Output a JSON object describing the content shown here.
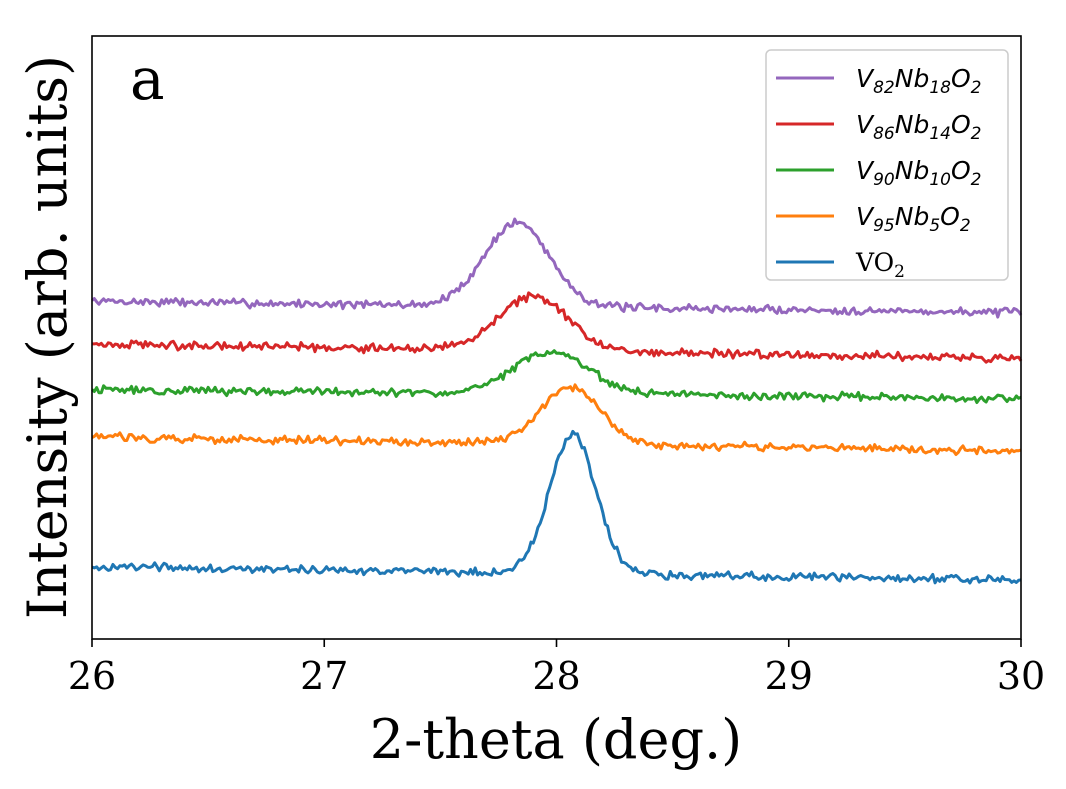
{
  "chart_data": {
    "type": "line",
    "panel_label": "a",
    "xlabel": "2-theta (deg.)",
    "ylabel": "Intensity (arb. units)",
    "xlim": [
      26,
      30
    ],
    "ylim": [
      0,
      13.3
    ],
    "xticks": [
      26,
      27,
      28,
      29,
      30
    ],
    "yticks": [],
    "grid": false,
    "legend_position": "top-right",
    "series": [
      {
        "name": "V82Nb18O2",
        "legend": {
          "base": "V",
          "s1": "82",
          "mid": "Nb",
          "s2": "18",
          "end": "O",
          "s3": "2"
        },
        "color": "#9467bd",
        "baseline_start": 7.45,
        "baseline_end": 7.2,
        "peak_center": 27.83,
        "peak_height": 1.85,
        "peak_width": 0.14,
        "noise": 0.11
      },
      {
        "name": "V86Nb14O2",
        "legend": {
          "base": "V",
          "s1": "86",
          "mid": "Nb",
          "s2": "14",
          "end": "O",
          "s3": "2"
        },
        "color": "#d62728",
        "baseline_start": 6.5,
        "baseline_end": 6.2,
        "peak_center": 27.9,
        "peak_height": 1.2,
        "peak_width": 0.15,
        "noise": 0.11
      },
      {
        "name": "V90Nb10O2",
        "legend": {
          "base": "V",
          "s1": "90",
          "mid": "Nb",
          "s2": "10",
          "end": "O",
          "s3": "2"
        },
        "color": "#2ca02c",
        "baseline_start": 5.5,
        "baseline_end": 5.3,
        "peak_center": 27.98,
        "peak_height": 0.95,
        "peak_width": 0.16,
        "noise": 0.11
      },
      {
        "name": "V95Nb5O2",
        "legend": {
          "base": "V",
          "s1": "95",
          "mid": "Nb",
          "s2": "5",
          "end": "O",
          "s3": "2"
        },
        "color": "#ff7f0e",
        "baseline_start": 4.45,
        "baseline_end": 4.15,
        "peak_center": 28.06,
        "peak_height": 1.25,
        "peak_width": 0.13,
        "noise": 0.11
      },
      {
        "name": "VO2",
        "legend": {
          "base": "VO",
          "s1": "2",
          "mid": "",
          "s2": "",
          "end": "",
          "s3": ""
        },
        "color": "#1f77b4",
        "baseline_start": 1.6,
        "baseline_end": 1.3,
        "peak_center": 28.07,
        "peak_height": 3.05,
        "peak_width": 0.1,
        "noise": 0.11
      }
    ]
  }
}
